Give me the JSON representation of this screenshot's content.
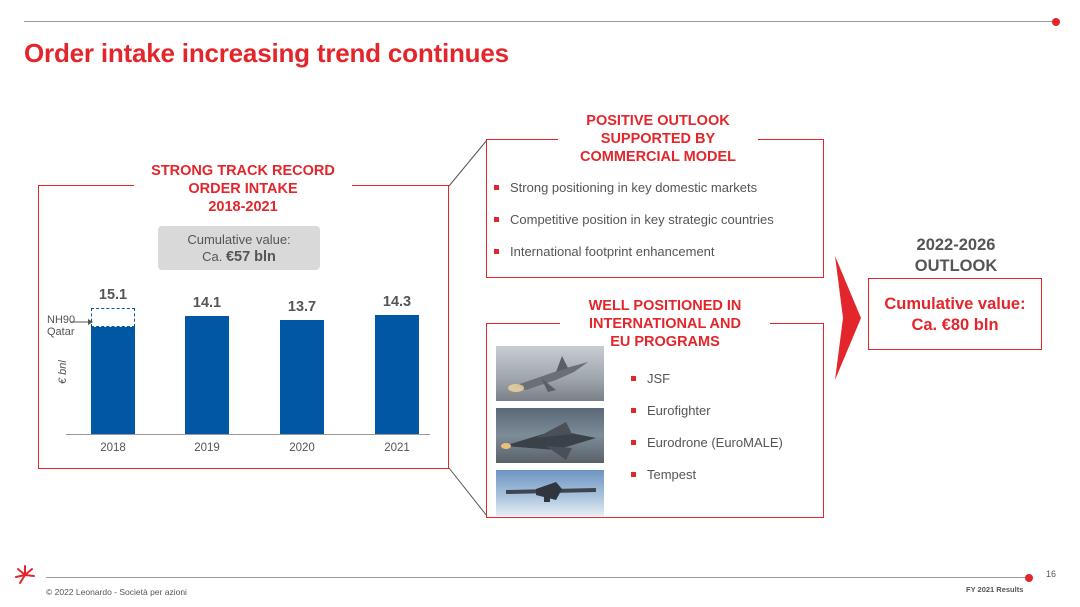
{
  "slide": {
    "title": "Order intake increasing trend continues",
    "page_number": "16",
    "footer_copyright": "© 2022 Leonardo - Società per azioni",
    "footer_report": "FY 2021 Results"
  },
  "track_record": {
    "heading_line1": "STRONG TRACK RECORD",
    "heading_line2": "ORDER INTAKE",
    "heading_line3": "2018-2021",
    "cumulative_label": "Cumulative value:",
    "cumulative_prefix": "Ca.",
    "cumulative_value": "€57 bln",
    "nh90_label_line1": "NH90",
    "nh90_label_line2": "Qatar",
    "unit_label": "€ bnl"
  },
  "chart_data": {
    "type": "bar",
    "categories": [
      "2018",
      "2019",
      "2020",
      "2021"
    ],
    "values": [
      15.1,
      14.1,
      13.7,
      14.3
    ],
    "value_labels": [
      "15.1",
      "14.1",
      "13.7",
      "14.3"
    ],
    "stacked_segment": {
      "category": "2018",
      "name": "NH90 Qatar",
      "style": "dashed"
    },
    "ylabel": "€ bnl",
    "colors": {
      "bar": "#0057a4",
      "dashed_segment": "#0057a4"
    }
  },
  "outlook_panel": {
    "heading_line1": "POSITIVE OUTLOOK",
    "heading_line2": "SUPPORTED BY",
    "heading_line3": "COMMERCIAL MODEL",
    "bullets": [
      "Strong positioning in key domestic markets",
      "Competitive position in key strategic countries",
      "International footprint enhancement"
    ]
  },
  "programs_panel": {
    "heading_line1": "WELL POSITIONED IN",
    "heading_line2": "INTERNATIONAL AND",
    "heading_line3": "EU PROGRAMS",
    "bullets": [
      "JSF",
      "Eurofighter",
      "Eurodrone (EuroMALE)",
      "Tempest"
    ]
  },
  "future_outlook": {
    "heading_line1": "2022-2026",
    "heading_line2": "OUTLOOK",
    "value_line1": "Cumulative value:",
    "value_line2": "Ca. €80 bln"
  },
  "colors": {
    "accent": "#e3262b",
    "bar": "#0057a4",
    "gray_box": "#d9d9d9"
  }
}
